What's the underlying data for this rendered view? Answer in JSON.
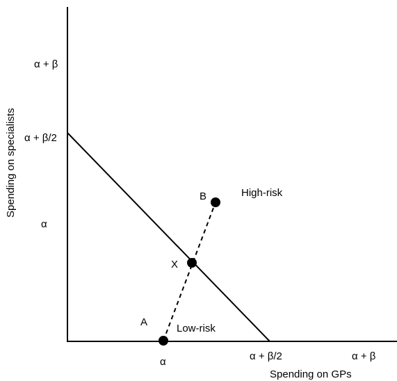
{
  "axes": {
    "x_label": "Spending on GPs",
    "y_label": "Spending on specialists"
  },
  "ticks": {
    "x": [
      "α",
      "α + β/2",
      "α + β"
    ],
    "y": [
      "α + β",
      "α + β/2",
      "α"
    ]
  },
  "points": {
    "a": "A",
    "b": "B",
    "x": "X"
  },
  "annotations": {
    "low_risk": "Low-risk",
    "high_risk": "High-risk"
  },
  "colors": {
    "ink": "#000000",
    "background": "#ffffff"
  }
}
